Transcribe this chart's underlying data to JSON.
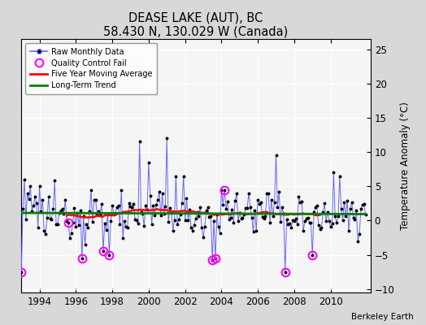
{
  "title": "DEASE LAKE (AUT), BC",
  "subtitle": "58.430 N, 130.029 W (Canada)",
  "ylabel": "Temperature Anomaly (°C)",
  "credit": "Berkeley Earth",
  "xlim": [
    1993.0,
    2012.2
  ],
  "ylim": [
    -10.5,
    26.5
  ],
  "yticks": [
    -10,
    -5,
    0,
    5,
    10,
    15,
    20,
    25
  ],
  "xticks": [
    1994,
    1996,
    1998,
    2000,
    2002,
    2004,
    2006,
    2008,
    2010
  ],
  "bg_color": "#d8d8d8",
  "plot_bg_color": "#f5f5f5",
  "grid_color": "#cccccc",
  "raw_line_color": "#6666ff",
  "raw_marker_color": "black",
  "qc_color": "magenta",
  "moving_avg_color": "red",
  "trend_color": "green",
  "seed": 12345
}
